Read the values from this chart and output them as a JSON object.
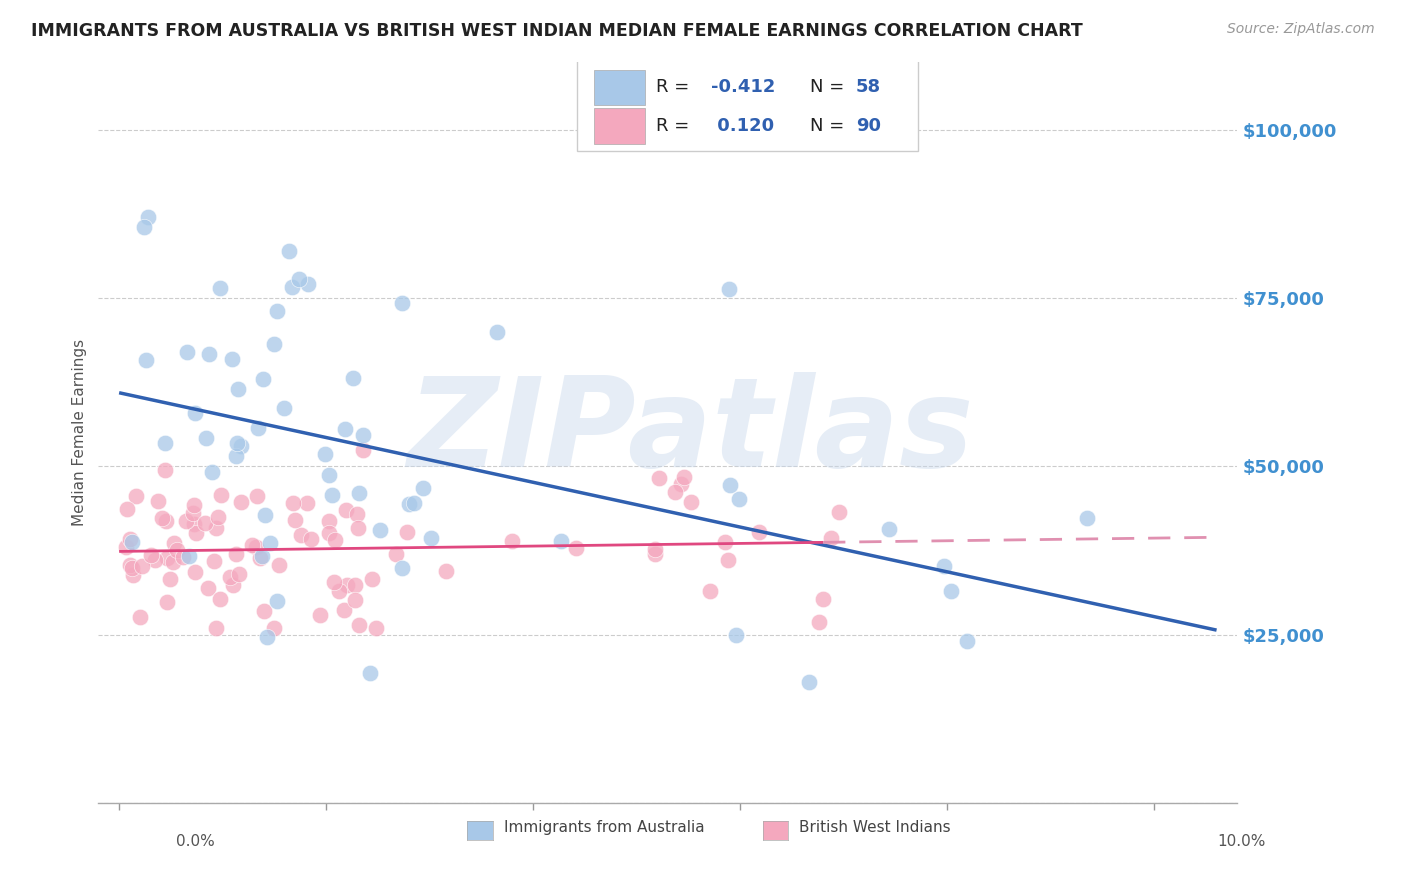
{
  "title": "IMMIGRANTS FROM AUSTRALIA VS BRITISH WEST INDIAN MEDIAN FEMALE EARNINGS CORRELATION CHART",
  "source": "Source: ZipAtlas.com",
  "ylabel": "Median Female Earnings",
  "watermark": "ZIPatlas",
  "ytick_vals": [
    0,
    25000,
    50000,
    75000,
    100000
  ],
  "ytick_labels": [
    "",
    "$25,000",
    "$50,000",
    "$75,000",
    "$100,000"
  ],
  "blue_color": "#a8c8e8",
  "pink_color": "#f4a8be",
  "blue_line_color": "#3060b0",
  "pink_line_color": "#e04880",
  "pink_line_dash_color": "#e090b0",
  "axis_label_color": "#4090d0",
  "grid_color": "#cccccc",
  "title_color": "#222222",
  "background_color": "#ffffff",
  "legend_text_color": "#3060b0",
  "aus_R": "-0.412",
  "aus_N": "58",
  "bwi_R": "0.120",
  "bwi_N": "90",
  "xlim_min": -0.002,
  "xlim_max": 0.108,
  "ylim_min": 0,
  "ylim_max": 110000
}
